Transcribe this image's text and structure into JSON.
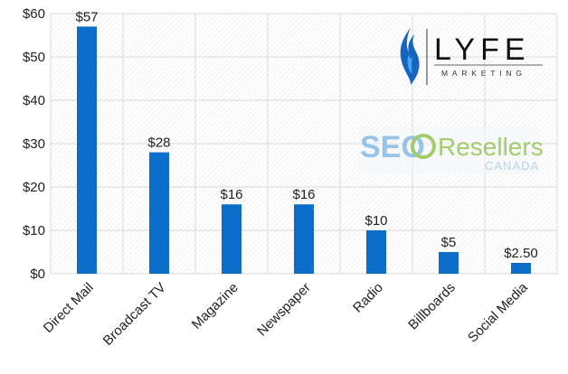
{
  "chart_data": {
    "type": "bar",
    "categories": [
      "Direct Mail",
      "Broadcast TV",
      "Magazine",
      "Newspaper",
      "Radio",
      "Billboards",
      "Social Media"
    ],
    "values": [
      57,
      28,
      16,
      16,
      10,
      5,
      2.5
    ],
    "data_labels": [
      "$57",
      "$28",
      "$16",
      "$16",
      "$10",
      "$5",
      "$2.50"
    ],
    "y_ticks": [
      0,
      10,
      20,
      30,
      40,
      50,
      60
    ],
    "y_tick_labels": [
      "$0",
      "$10",
      "$20",
      "$30",
      "$40",
      "$50",
      "$60"
    ],
    "ylim": [
      0,
      60
    ],
    "title": "",
    "xlabel": "",
    "ylabel": "",
    "grid": true,
    "bar_color": "#0b6fc9",
    "grid_color": "#d9d9d9"
  },
  "logos": {
    "lyfe": {
      "wordmark": "LYFE",
      "subtitle": "MARKETING",
      "flame_color": "#1565c0"
    },
    "seo_resellers": {
      "seo_text": "SEO",
      "resellers_text": "Resellers",
      "canada_text": "CANADA",
      "seo_color": "#7fb8e6",
      "resellers_color": "#8cc34a"
    }
  }
}
